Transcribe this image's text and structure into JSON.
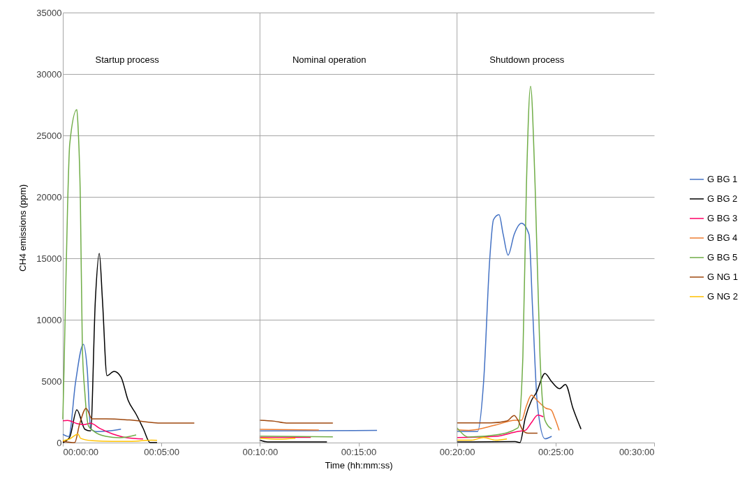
{
  "chart_data": {
    "type": "line",
    "xlabel": "Time (hh:mm:ss)",
    "ylabel": "CH4 emissions (ppm)",
    "xlim": [
      0,
      30
    ],
    "xticks": [
      {
        "value": 0,
        "label": "00:00:00"
      },
      {
        "value": 5,
        "label": "00:05:00"
      },
      {
        "value": 10,
        "label": "00:10:00"
      },
      {
        "value": 15,
        "label": "00:15:00"
      },
      {
        "value": 20,
        "label": "00:20:00"
      },
      {
        "value": 25,
        "label": "00:25:00"
      },
      {
        "value": 30,
        "label": "00:30:00"
      }
    ],
    "ylim": [
      0,
      35000
    ],
    "yticks": [
      0,
      5000,
      10000,
      15000,
      20000,
      25000,
      30000,
      35000
    ],
    "grid": "y",
    "legend": "right",
    "line_style": "solid",
    "ref_lines": [
      {
        "axis": "x",
        "value": 10,
        "color": "#a6a6a6"
      },
      {
        "axis": "x",
        "value": 20,
        "color": "#a6a6a6"
      }
    ],
    "annotations": [
      "Startup process",
      "Nominal operation",
      "Shutdown process"
    ],
    "series": [
      {
        "name": "G BG 1",
        "color": "#4472c4",
        "x": [
          0,
          0.3,
          0.65,
          1.04,
          1.24,
          1.41,
          1.71,
          2.3,
          2.95,
          6,
          9.98,
          15.94,
          18,
          20,
          21.04,
          21.35,
          21.66,
          21.85,
          22.13,
          22.34,
          22.59,
          22.9,
          23.27,
          23.65,
          23.83,
          24.08,
          24.46,
          24.8
        ],
        "values": [
          680,
          500,
          4960,
          8000,
          5900,
          1140,
          900,
          950,
          1100,
          null,
          950,
          990,
          null,
          910,
          910,
          5000,
          14960,
          18150,
          18550,
          16950,
          15260,
          16950,
          17850,
          16950,
          10970,
          3010,
          310,
          510
        ]
      },
      {
        "name": "G BG 2",
        "color": "#000000",
        "x": [
          0,
          0.35,
          0.71,
          1.12,
          1.41,
          1.65,
          1.85,
          2.01,
          2.24,
          2.6,
          2.95,
          3.31,
          3.72,
          4.07,
          4.43,
          4.78,
          7,
          9.98,
          10.39,
          13.4,
          17,
          20,
          22.95,
          23.19,
          23.46,
          23.77,
          24.02,
          24.46,
          24.78,
          25.2,
          25.5,
          25.88,
          26.29
        ],
        "values": [
          0,
          450,
          2670,
          1080,
          950,
          11600,
          15400,
          11600,
          5450,
          5800,
          5340,
          3450,
          2300,
          1180,
          0,
          0,
          null,
          200,
          60,
          60,
          null,
          50,
          80,
          0,
          2000,
          3410,
          4050,
          5630,
          5000,
          4390,
          4730,
          2800,
          1100
        ]
      },
      {
        "name": "G BG 3",
        "color": "#ff0066",
        "x": [
          0,
          0.24,
          0.71,
          1.06,
          1.41,
          1.89,
          2.54,
          3.25,
          4.07,
          7,
          9.98,
          12.58,
          17,
          20,
          21.96,
          23.09,
          23.46,
          23.77,
          24.1,
          24.38
        ],
        "values": [
          1780,
          1800,
          1550,
          1460,
          1580,
          1140,
          700,
          400,
          300,
          null,
          420,
          420,
          null,
          410,
          510,
          910,
          1000,
          1620,
          2250,
          2100
        ]
      },
      {
        "name": "G BG 4",
        "color": "#ed7d31",
        "x": [
          9.98,
          12.99,
          17,
          20,
          20.6,
          21.96,
          22.95,
          23.27,
          23.52,
          23.77,
          24.08,
          24.51,
          24.78,
          24.96,
          25.18
        ],
        "values": [
          1080,
          1020,
          null,
          1050,
          1000,
          1430,
          1820,
          1820,
          3000,
          3860,
          3410,
          2800,
          2650,
          2000,
          1000
        ]
      },
      {
        "name": "G BG 5",
        "color": "#70ad47",
        "x": [
          0,
          0.06,
          0.24,
          0.35,
          0.71,
          0.77,
          0.89,
          0.99,
          1.12,
          1.3,
          1.59,
          2.18,
          2.89,
          3.72,
          7,
          9.98,
          13.7,
          17,
          20,
          20.6,
          21.96,
          23.09,
          23.34,
          23.52,
          23.73,
          23.96,
          24.21,
          24.46,
          24.8
        ],
        "values": [
          1900,
          5900,
          19200,
          24300,
          27100,
          25800,
          19700,
          7800,
          4000,
          1360,
          900,
          510,
          400,
          620,
          null,
          530,
          470,
          null,
          1200,
          450,
          620,
          1200,
          7000,
          20940,
          29000,
          20940,
          7000,
          1820,
          1120
        ]
      },
      {
        "name": "G NG 1",
        "color": "#9e480e",
        "x": [
          0,
          0.6,
          0.85,
          1.18,
          1.48,
          2.18,
          3.37,
          5.02,
          6.67,
          8,
          9.98,
          10.74,
          11.34,
          13.7,
          17,
          20,
          21.71,
          22.53,
          22.9,
          23.09,
          23.34,
          23.6,
          24.08
        ],
        "values": [
          100,
          0,
          1500,
          2780,
          1930,
          1930,
          1840,
          1590,
          1590,
          null,
          1820,
          1740,
          1590,
          1590,
          null,
          1600,
          1600,
          1760,
          2200,
          1820,
          1000,
          770,
          770
        ]
      },
      {
        "name": "G NG 2",
        "color": "#ffc000",
        "x": [
          0,
          0.35,
          0.77,
          0.9,
          1.5,
          2.5,
          3.5,
          4.5,
          4.78,
          7,
          9.98,
          10.98,
          11.8,
          17,
          20,
          20.74,
          21.35,
          21.96,
          22.53
        ],
        "values": [
          150,
          300,
          700,
          350,
          150,
          100,
          100,
          200,
          190,
          null,
          360,
          280,
          360,
          null,
          200,
          200,
          410,
          200,
          300
        ]
      }
    ]
  }
}
